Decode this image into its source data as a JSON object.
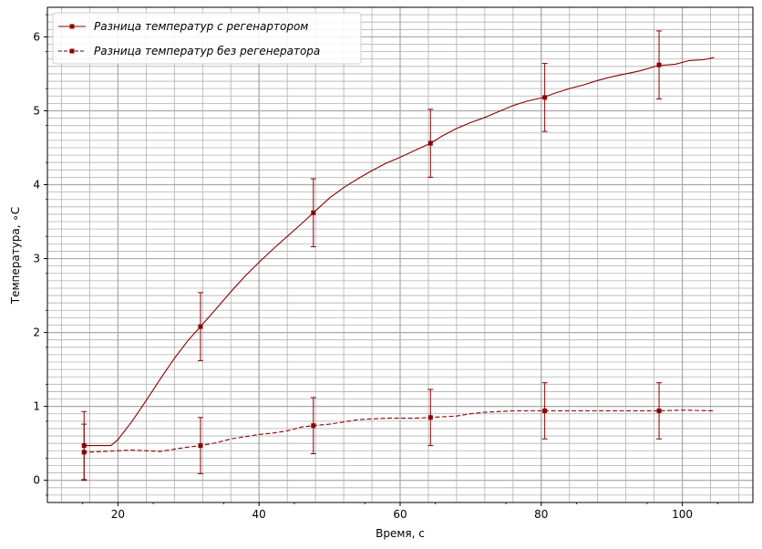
{
  "chart_data": {
    "type": "line",
    "xlabel": "Время, с",
    "ylabel": "Температура, ∘C",
    "xlim": [
      10,
      110
    ],
    "ylim": [
      -0.3,
      6.4
    ],
    "xticks": [
      20,
      40,
      60,
      80,
      100
    ],
    "yticks": [
      0,
      1,
      2,
      3,
      4,
      5,
      6
    ],
    "grid": true,
    "legend_position": "upper-left",
    "color": "#8b0000",
    "series": [
      {
        "name": "Разница температур с регенартором",
        "style": "solid",
        "curve": [
          [
            15,
            0.47
          ],
          [
            19,
            0.47
          ],
          [
            20,
            0.55
          ],
          [
            22,
            0.8
          ],
          [
            24,
            1.08
          ],
          [
            26,
            1.37
          ],
          [
            28,
            1.65
          ],
          [
            30,
            1.9
          ],
          [
            31.7,
            2.08
          ],
          [
            34,
            2.33
          ],
          [
            36,
            2.55
          ],
          [
            38,
            2.76
          ],
          [
            40,
            2.95
          ],
          [
            42,
            3.13
          ],
          [
            44,
            3.3
          ],
          [
            46,
            3.47
          ],
          [
            47.7,
            3.62
          ],
          [
            50,
            3.82
          ],
          [
            52,
            3.96
          ],
          [
            54,
            4.08
          ],
          [
            56,
            4.19
          ],
          [
            58,
            4.29
          ],
          [
            60,
            4.37
          ],
          [
            62,
            4.46
          ],
          [
            64.3,
            4.56
          ],
          [
            66,
            4.66
          ],
          [
            68,
            4.76
          ],
          [
            70,
            4.84
          ],
          [
            72,
            4.91
          ],
          [
            74,
            4.99
          ],
          [
            76,
            5.07
          ],
          [
            78,
            5.13
          ],
          [
            80.3,
            5.18
          ],
          [
            82,
            5.24
          ],
          [
            84,
            5.3
          ],
          [
            86,
            5.35
          ],
          [
            88,
            5.41
          ],
          [
            90,
            5.46
          ],
          [
            92,
            5.5
          ],
          [
            94,
            5.54
          ],
          [
            96.5,
            5.61
          ],
          [
            99,
            5.63
          ],
          [
            101,
            5.68
          ],
          [
            103,
            5.69
          ],
          [
            104.5,
            5.72
          ]
        ],
        "markers": [
          {
            "x": 15.2,
            "y": 0.47,
            "err": 0.46
          },
          {
            "x": 31.7,
            "y": 2.08,
            "err": 0.46
          },
          {
            "x": 47.7,
            "y": 3.62,
            "err": 0.46
          },
          {
            "x": 64.3,
            "y": 4.56,
            "err": 0.46
          },
          {
            "x": 80.5,
            "y": 5.18,
            "err": 0.46
          },
          {
            "x": 96.7,
            "y": 5.62,
            "err": 0.46
          }
        ]
      },
      {
        "name": "Разница температур без регенератора",
        "style": "dashed",
        "curve": [
          [
            15,
            0.38
          ],
          [
            18,
            0.39
          ],
          [
            20,
            0.4
          ],
          [
            22,
            0.41
          ],
          [
            24,
            0.4
          ],
          [
            26,
            0.39
          ],
          [
            28,
            0.42
          ],
          [
            30,
            0.45
          ],
          [
            31.7,
            0.47
          ],
          [
            34,
            0.51
          ],
          [
            36,
            0.56
          ],
          [
            38,
            0.59
          ],
          [
            40,
            0.62
          ],
          [
            42,
            0.64
          ],
          [
            44,
            0.67
          ],
          [
            46,
            0.72
          ],
          [
            47.7,
            0.74
          ],
          [
            50,
            0.76
          ],
          [
            52,
            0.79
          ],
          [
            54,
            0.82
          ],
          [
            56,
            0.83
          ],
          [
            58,
            0.84
          ],
          [
            60,
            0.84
          ],
          [
            62,
            0.84
          ],
          [
            64.3,
            0.85
          ],
          [
            66,
            0.86
          ],
          [
            68,
            0.87
          ],
          [
            70,
            0.9
          ],
          [
            72,
            0.92
          ],
          [
            74,
            0.93
          ],
          [
            76,
            0.94
          ],
          [
            78,
            0.94
          ],
          [
            80.5,
            0.94
          ],
          [
            85,
            0.94
          ],
          [
            90,
            0.94
          ],
          [
            96.7,
            0.94
          ],
          [
            100,
            0.95
          ],
          [
            104.5,
            0.94
          ]
        ],
        "markers": [
          {
            "x": 15.2,
            "y": 0.38,
            "err": 0.38
          },
          {
            "x": 31.7,
            "y": 0.47,
            "err": 0.38
          },
          {
            "x": 47.7,
            "y": 0.74,
            "err": 0.38
          },
          {
            "x": 64.3,
            "y": 0.85,
            "err": 0.38
          },
          {
            "x": 80.5,
            "y": 0.94,
            "err": 0.38
          },
          {
            "x": 96.7,
            "y": 0.94,
            "err": 0.38
          }
        ]
      }
    ]
  }
}
